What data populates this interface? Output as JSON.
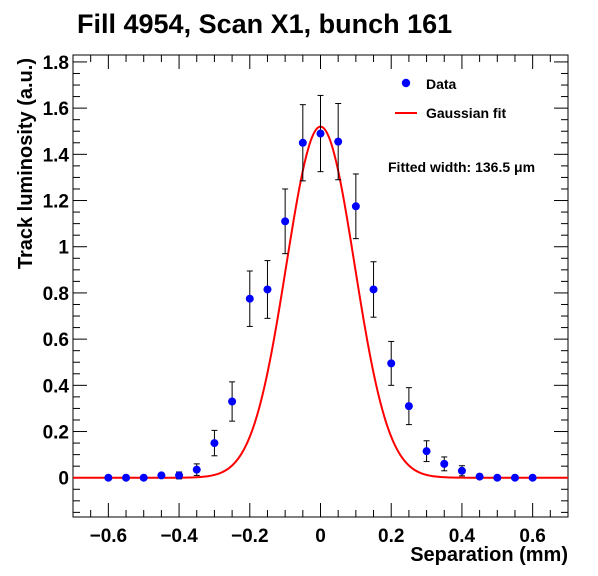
{
  "chart_data": {
    "type": "scatter",
    "title": "Fill 4954, Scan X1, bunch 161",
    "xlabel": "Separation (mm)",
    "ylabel": "Track luminosity (a.u.)",
    "xlim": [
      -0.7,
      0.7
    ],
    "ylim": [
      -0.17,
      1.83
    ],
    "xticks": [
      -0.6,
      -0.4,
      -0.2,
      0,
      0.2,
      0.4,
      0.6
    ],
    "xtick_labels": [
      "−0.6",
      "−0.4",
      "−0.2",
      "0",
      "0.2",
      "0.4",
      "0.6"
    ],
    "yticks": [
      0,
      0.2,
      0.4,
      0.6,
      0.8,
      1,
      1.2,
      1.4,
      1.6,
      1.8
    ],
    "ytick_labels": [
      "0",
      "0.2",
      "0.4",
      "0.6",
      "0.8",
      "1",
      "1.2",
      "1.4",
      "1.6",
      "1.8"
    ],
    "grid": false,
    "legend_position": "top-right",
    "legend": [
      "Data",
      "Gaussian fit"
    ],
    "annotation": "Fitted width: 136.5 μm",
    "colors": {
      "data": "#0000ff",
      "fit": "#ff0000",
      "error_bar": "#000000",
      "axis": "#000000"
    },
    "series": [
      {
        "name": "Data",
        "style": "markers-with-error-bars",
        "x": [
          -0.6,
          -0.55,
          -0.5,
          -0.45,
          -0.4,
          -0.35,
          -0.3,
          -0.25,
          -0.2,
          -0.15,
          -0.1,
          -0.05,
          0,
          0.05,
          0.1,
          0.15,
          0.2,
          0.25,
          0.3,
          0.35,
          0.4,
          0.45,
          0.5,
          0.55,
          0.6
        ],
        "y": [
          0.0,
          0.0,
          0.0,
          0.01,
          0.01,
          0.035,
          0.15,
          0.33,
          0.775,
          0.815,
          1.11,
          1.45,
          1.49,
          1.455,
          1.175,
          0.815,
          0.495,
          0.31,
          0.115,
          0.06,
          0.03,
          0.005,
          0.0,
          0.0,
          0.0
        ],
        "yerr": [
          0.005,
          0.005,
          0.005,
          0.008,
          0.015,
          0.025,
          0.055,
          0.085,
          0.12,
          0.125,
          0.14,
          0.165,
          0.165,
          0.165,
          0.14,
          0.12,
          0.095,
          0.08,
          0.045,
          0.03,
          0.022,
          0.008,
          0.005,
          0.005,
          0.005
        ]
      },
      {
        "name": "Gaussian fit",
        "style": "line",
        "function": "gaussian",
        "amplitude": 1.52,
        "mean": 0.0,
        "sigma": 0.0965
      }
    ]
  }
}
